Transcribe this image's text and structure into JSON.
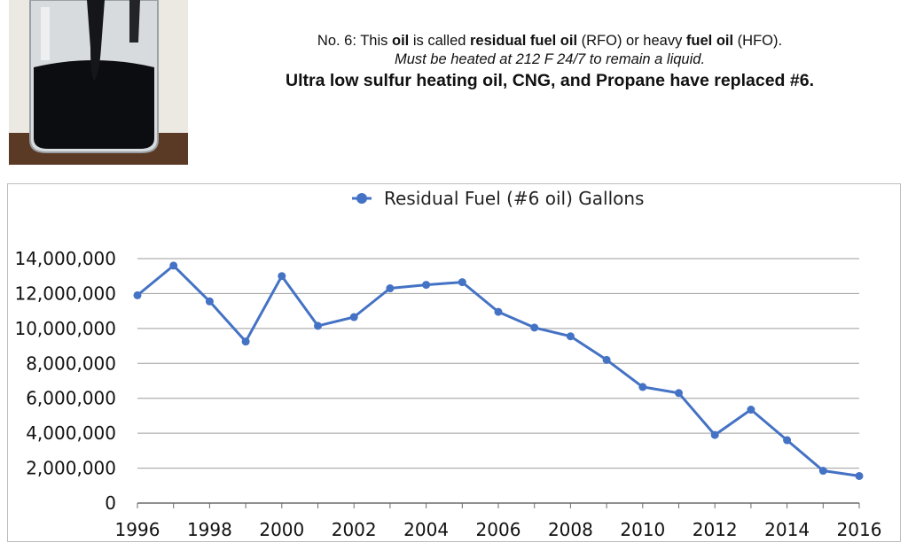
{
  "caption": {
    "line1": [
      {
        "text": "No. 6: This ",
        "bold": false
      },
      {
        "text": "oil",
        "bold": true
      },
      {
        "text": " is called ",
        "bold": false
      },
      {
        "text": "residual fuel oil",
        "bold": true
      },
      {
        "text": " (RFO) or heavy ",
        "bold": false
      },
      {
        "text": "fuel oil",
        "bold": true
      },
      {
        "text": " (HFO).",
        "bold": false
      }
    ],
    "line2": "Must be heated at 212 F 24/7 to remain a liquid.",
    "line3": "Ultra low sulfur heating oil, CNG, and Propane have replaced #6."
  },
  "photo": {
    "icon": "jar-of-black-oil-photo"
  },
  "colors": {
    "series": "#4472c4",
    "grid": "#9e9e9e",
    "axis": "#6b6b6b",
    "oil": "#0c0d10"
  },
  "chart_data": {
    "type": "line",
    "legend": "Residual Fuel (#6 oil) Gallons",
    "x": [
      1996,
      1997,
      1998,
      1999,
      2000,
      2001,
      2002,
      2003,
      2004,
      2005,
      2006,
      2007,
      2008,
      2009,
      2010,
      2011,
      2012,
      2013,
      2014,
      2015,
      2016
    ],
    "series": [
      {
        "name": "Residual Fuel (#6 oil) Gallons",
        "values": [
          11900000,
          13600000,
          11550000,
          9250000,
          13000000,
          10150000,
          10650000,
          12300000,
          12500000,
          12650000,
          10950000,
          10050000,
          9550000,
          8200000,
          6650000,
          6300000,
          3900000,
          5350000,
          3600000,
          1850000,
          1550000
        ]
      }
    ],
    "xticks": [
      "1996",
      "1998",
      "2000",
      "2002",
      "2004",
      "2006",
      "2008",
      "2010",
      "2012",
      "2014",
      "2016"
    ],
    "yticks": [
      {
        "value": 0,
        "label": "0"
      },
      {
        "value": 2000000,
        "label": "2,000,000"
      },
      {
        "value": 4000000,
        "label": "4,000,000"
      },
      {
        "value": 6000000,
        "label": "6,000,000"
      },
      {
        "value": 8000000,
        "label": "8,000,000"
      },
      {
        "value": 10000000,
        "label": "10,000,000"
      },
      {
        "value": 12000000,
        "label": "12,000,000"
      },
      {
        "value": 14000000,
        "label": "14,000,000"
      }
    ],
    "ylim": [
      0,
      14000000
    ],
    "xlim": [
      1996,
      2016
    ],
    "grid": true,
    "legend_position": "top-center"
  }
}
